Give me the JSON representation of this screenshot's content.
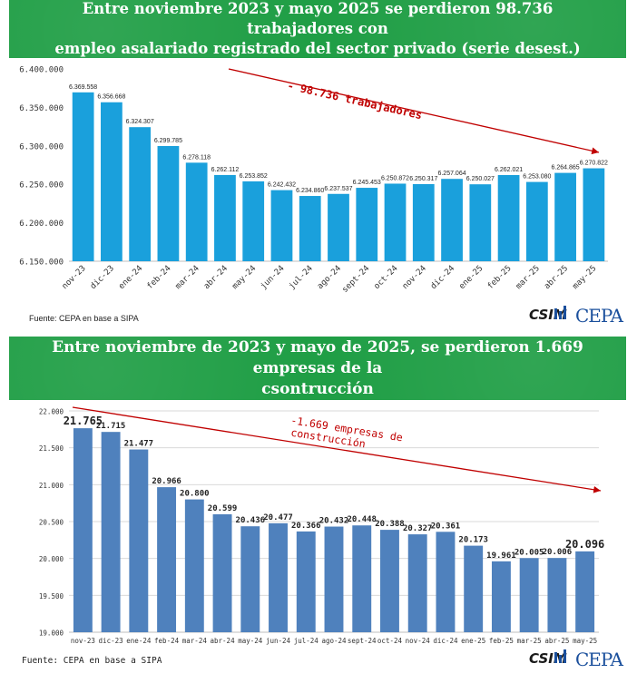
{
  "charts": [
    {
      "banner_lines": [
        "Entre noviembre 2023 y mayo 2025 se perdieron 98.736 trabajadores con",
        "empleo asalariado registrado del sector privado (serie desest.)"
      ],
      "source": "Fuente: CEPA en base a SIPA",
      "logos": {
        "csim": "CSIM",
        "cepa": "CEPA"
      },
      "bar_color": "#1aa0dc",
      "axis_font": "mono"
    },
    {
      "banner_lines": [
        "Entre noviembre de 2023 y mayo de 2025, se perdieron 1.669 empresas de la",
        "csontrucción"
      ],
      "source": "Fuente: CEPA en base a SIPA",
      "logos": {
        "csim": "CSIM",
        "cepa": "CEPA"
      },
      "bar_color": "#4f81bd",
      "axis_font": "mono"
    }
  ],
  "chart_data": [
    {
      "type": "bar",
      "categories": [
        "nov-23",
        "dic-23",
        "ene-24",
        "feb-24",
        "mar-24",
        "abr-24",
        "may-24",
        "jun-24",
        "jul-24",
        "ago-24",
        "sept-24",
        "oct-24",
        "nov-24",
        "dic-24",
        "ene-25",
        "feb-25",
        "mar-25",
        "abr-25",
        "may-25"
      ],
      "values": [
        6369558,
        6356668,
        6324307,
        6299785,
        6278118,
        6262112,
        6253852,
        6242432,
        6234860,
        6237537,
        6245453,
        6250872,
        6250317,
        6257064,
        6250027,
        6262021,
        6253080,
        6264865,
        6270822
      ],
      "value_labels": [
        "6.369.558",
        "6.356.668",
        "6.324.307",
        "6.299.785",
        "6.278.118",
        "6.262.112",
        "6.253.852",
        "6.242.432",
        "6.234.860",
        "6.237.537",
        "6.245.453",
        "6.250.872",
        "6.250.317",
        "6.257.064",
        "6.250.027",
        "6.262.021",
        "6.253.080",
        "6.264.865",
        "6.270.822"
      ],
      "ylim": [
        6150000,
        6400000
      ],
      "yticks": [
        "6.150.000",
        "6.200.000",
        "6.250.000",
        "6.300.000",
        "6.350.000",
        "6.400.000"
      ],
      "annotation": "- 98.736 trabajadores",
      "annotation_color": "#c00000",
      "grid": false
    },
    {
      "type": "bar",
      "categories": [
        "nov-23",
        "dic-23",
        "ene-24",
        "feb-24",
        "mar-24",
        "abr-24",
        "may-24",
        "jun-24",
        "jul-24",
        "ago-24",
        "sept-24",
        "oct-24",
        "nov-24",
        "dic-24",
        "ene-25",
        "feb-25",
        "mar-25",
        "abr-25",
        "may-25"
      ],
      "values": [
        21765,
        21715,
        21477,
        20966,
        20800,
        20599,
        20436,
        20477,
        20366,
        20432,
        20448,
        20388,
        20327,
        20361,
        20173,
        19961,
        20005,
        20006,
        20096
      ],
      "value_labels": [
        "21.765",
        "21.715",
        "21.477",
        "20.966",
        "20.800",
        "20.599",
        "20.436",
        "20.477",
        "20.366",
        "20.432",
        "20.448",
        "20.388",
        "20.327",
        "20.361",
        "20.173",
        "19.961",
        "20.005",
        "20.006",
        "20.096"
      ],
      "ylim": [
        19000,
        22000
      ],
      "yticks": [
        "19.000",
        "19.500",
        "20.000",
        "20.500",
        "21.000",
        "21.500",
        "22.000"
      ],
      "annotation_lines": [
        "-1.669 empresas de",
        "construcción"
      ],
      "annotation_color": "#c00000",
      "grid": true
    }
  ]
}
